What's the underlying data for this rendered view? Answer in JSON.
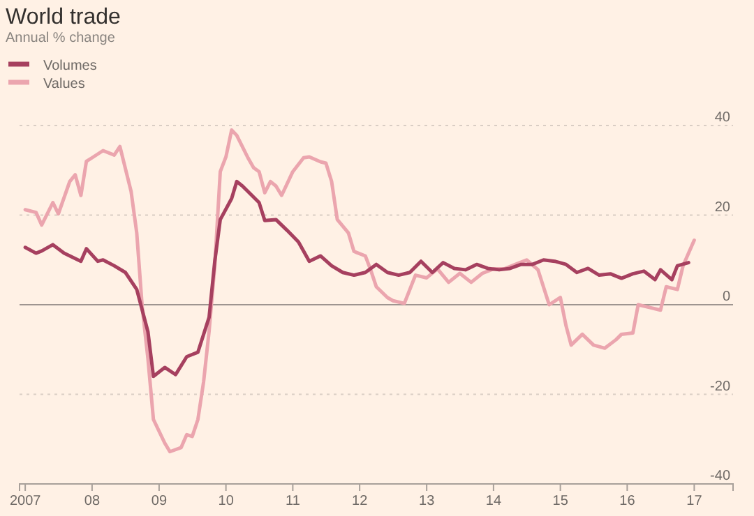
{
  "chart_data": {
    "type": "line",
    "title": "World trade",
    "subtitle": "Annual % change",
    "xlim": [
      "2006-12",
      "2017-08"
    ],
    "ylim": [
      -40,
      40
    ],
    "xticks": [
      {
        "value": "2007-01",
        "label": "2007"
      },
      {
        "value": "2008-01",
        "label": "08"
      },
      {
        "value": "2009-01",
        "label": "09"
      },
      {
        "value": "2010-01",
        "label": "10"
      },
      {
        "value": "2011-01",
        "label": "11"
      },
      {
        "value": "2012-01",
        "label": "12"
      },
      {
        "value": "2013-01",
        "label": "13"
      },
      {
        "value": "2014-01",
        "label": "14"
      },
      {
        "value": "2015-01",
        "label": "15"
      },
      {
        "value": "2016-01",
        "label": "16"
      },
      {
        "value": "2017-01",
        "label": "17"
      }
    ],
    "yticks": [
      -40,
      -20,
      0,
      20,
      40
    ],
    "grid": "y",
    "legend": "top left",
    "line_style": "solid",
    "marker": "none",
    "ref_lines": [
      {
        "axis": "y",
        "value": 0,
        "color": "#9e9590"
      }
    ],
    "series": [
      {
        "name": "Volumes",
        "color": "#a6405f",
        "x": [
          "2007-01",
          "2007-03",
          "2007-04",
          "2007-06",
          "2007-08",
          "2007-11",
          "2007-12",
          "2008-02",
          "2008-03",
          "2008-05",
          "2008-07",
          "2008-09",
          "2008-11",
          "2008-12",
          "2009-02",
          "2009-04",
          "2009-06",
          "2009-08",
          "2009-10",
          "2009-11",
          "2009-12",
          "2010-02",
          "2010-03",
          "2010-04",
          "2010-07",
          "2010-08",
          "2010-10",
          "2010-12",
          "2011-02",
          "2011-04",
          "2011-06",
          "2011-08",
          "2011-10",
          "2011-12",
          "2012-02",
          "2012-04",
          "2012-06",
          "2012-08",
          "2012-10",
          "2012-12",
          "2013-02",
          "2013-04",
          "2013-06",
          "2013-08",
          "2013-10",
          "2013-12",
          "2014-02",
          "2014-04",
          "2014-06",
          "2014-08",
          "2014-10",
          "2014-12",
          "2015-02",
          "2015-04",
          "2015-06",
          "2015-08",
          "2015-10",
          "2015-12",
          "2016-02",
          "2016-04",
          "2016-06",
          "2016-07",
          "2016-09",
          "2016-10",
          "2016-12"
        ],
        "values": [
          12.8,
          11.5,
          12,
          13.4,
          11.5,
          9.7,
          12.5,
          9.7,
          10,
          8.7,
          7.2,
          3.4,
          -6,
          -16,
          -14,
          -15.6,
          -11.6,
          -10.6,
          -2.8,
          9.7,
          19,
          23.7,
          27.5,
          26.5,
          22.8,
          18.8,
          19,
          16.6,
          14,
          9.7,
          10.9,
          8.7,
          7.2,
          6.6,
          7.2,
          9,
          7.2,
          6.6,
          7.2,
          9.7,
          7.2,
          9.4,
          8.1,
          7.8,
          9,
          8.1,
          7.8,
          8.1,
          9,
          9,
          10,
          9.7,
          9,
          7.2,
          8.1,
          6.6,
          6.9,
          5.9,
          6.9,
          7.5,
          5.6,
          7.8,
          5.6,
          8.7,
          9.4
        ]
      },
      {
        "name": "Values",
        "color": "#eba5ae",
        "x": [
          "2007-01",
          "2007-03",
          "2007-04",
          "2007-06",
          "2007-07",
          "2007-09",
          "2007-10",
          "2007-11",
          "2007-12",
          "2008-01",
          "2008-03",
          "2008-05",
          "2008-06",
          "2008-08",
          "2008-09",
          "2008-10",
          "2008-11",
          "2008-12",
          "2009-02",
          "2009-03",
          "2009-05",
          "2009-06",
          "2009-07",
          "2009-08",
          "2009-09",
          "2009-10",
          "2009-11",
          "2009-12",
          "2010-01",
          "2010-02",
          "2010-03",
          "2010-05",
          "2010-06",
          "2010-07",
          "2010-08",
          "2010-09",
          "2010-10",
          "2010-11",
          "2011-01",
          "2011-03",
          "2011-04",
          "2011-06",
          "2011-07",
          "2011-08",
          "2011-09",
          "2011-11",
          "2011-12",
          "2012-02",
          "2012-03",
          "2012-04",
          "2012-06",
          "2012-07",
          "2012-09",
          "2012-11",
          "2013-01",
          "2013-03",
          "2013-05",
          "2013-07",
          "2013-09",
          "2013-11",
          "2014-01",
          "2014-03",
          "2014-05",
          "2014-07",
          "2014-09",
          "2014-11",
          "2015-01",
          "2015-02",
          "2015-03",
          "2015-05",
          "2015-07",
          "2015-09",
          "2015-11",
          "2015-12",
          "2016-02",
          "2016-03",
          "2016-05",
          "2016-07",
          "2016-08",
          "2016-10",
          "2016-11",
          "2017-01"
        ],
        "values": [
          21.2,
          20.6,
          17.8,
          22.8,
          20.3,
          27.5,
          29,
          24.4,
          32,
          32.8,
          34.4,
          33.4,
          35.3,
          25.3,
          16,
          -0.6,
          -12,
          -25.6,
          -30.9,
          -32.8,
          -31.9,
          -29,
          -29.4,
          -25.6,
          -17.2,
          -5.9,
          8.7,
          29.7,
          33,
          39,
          37.8,
          32.8,
          30.6,
          29.7,
          25,
          27.5,
          26.5,
          24.4,
          29.7,
          32.8,
          33,
          31.9,
          31.6,
          27.5,
          19,
          16,
          11.9,
          10.9,
          7.8,
          4,
          1.6,
          0.9,
          0.3,
          6.6,
          6,
          8,
          5,
          7,
          5,
          7,
          8,
          8,
          9,
          10,
          7.8,
          0,
          1.6,
          -4.7,
          -9,
          -6.6,
          -9,
          -9.7,
          -7.8,
          -6.6,
          -6.3,
          0,
          -0.6,
          -1.2,
          4,
          3.4,
          8.7,
          14.4
        ]
      }
    ]
  }
}
